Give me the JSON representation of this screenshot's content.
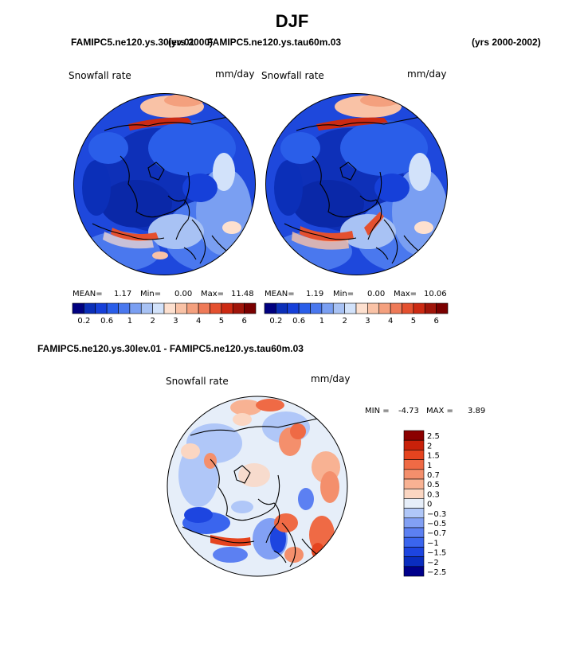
{
  "page": {
    "title": "DJF",
    "case_a": "FAMIPC5.ne120.ys.30lev.01",
    "case_b": "FAMIPC5.ne120.ys.tau60m.03",
    "case_a_years": "(yrs 2000)",
    "case_b_years": "(yrs 2000-2002)",
    "diff_title": "FAMIPC5.ne120.ys.30lev.01 - FAMIPC5.ne120.ys.tau60m.03"
  },
  "panels": {
    "left": {
      "variable": "Snowfall rate",
      "units": "mm/day",
      "mean_label": "MEAN=",
      "mean": "1.17",
      "min_label": "Min=",
      "min": "0.00",
      "max_label": "Max=",
      "max": "11.48"
    },
    "right": {
      "variable": "Snowfall rate",
      "units": "mm/day",
      "mean_label": "MEAN=",
      "mean": "1.19",
      "min_label": "Min=",
      "min": "0.00",
      "max_label": "Max=",
      "max": "10.06"
    },
    "diff": {
      "variable": "Snowfall rate",
      "units": "mm/day",
      "min_label": "MIN =",
      "min": "-4.73",
      "max_label": "MAX =",
      "max": "3.89"
    }
  },
  "colors": {
    "abs_scale": [
      "#00007f",
      "#0b2fb8",
      "#1640d9",
      "#2a5ee9",
      "#4a78ee",
      "#7a9ff2",
      "#a8c2f4",
      "#d2e2fa",
      "#fde0cf",
      "#f9c2a6",
      "#f4a07e",
      "#ee7a58",
      "#e4502f",
      "#cc2a13",
      "#a0150a",
      "#7a0000"
    ],
    "diff_scale": [
      "#00008b",
      "#0a2dbf",
      "#1d45e0",
      "#3a65ee",
      "#5c80f2",
      "#82a0f4",
      "#b0c7f8",
      "#e6eef9",
      "#fbd6c2",
      "#f8b293",
      "#f48f6c",
      "#ef6a45",
      "#e5441f",
      "#c8210a",
      "#8b0000"
    ]
  },
  "chart_data": [
    {
      "type": "heatmap",
      "title": "Snowfall rate",
      "units": "mm/day",
      "case": "FAMIPC5.ne120.ys.30lev.01",
      "projection": "polar stereographic (north pole)",
      "mean": 1.17,
      "min": 0.0,
      "max": 11.48,
      "colorbar_levels": [
        0.1,
        0.2,
        0.4,
        0.6,
        0.8,
        1,
        1.5,
        2,
        2.5,
        3,
        3.5,
        4,
        4.5,
        5,
        6
      ],
      "colorbar_tick_labels": [
        "0.2",
        "0.6",
        "1",
        "2",
        "3",
        "4",
        "5",
        "6"
      ]
    },
    {
      "type": "heatmap",
      "title": "Snowfall rate",
      "units": "mm/day",
      "case": "FAMIPC5.ne120.ys.tau60m.03",
      "projection": "polar stereographic (north pole)",
      "mean": 1.19,
      "min": 0.0,
      "max": 10.06,
      "colorbar_levels": [
        0.1,
        0.2,
        0.4,
        0.6,
        0.8,
        1,
        1.5,
        2,
        2.5,
        3,
        3.5,
        4,
        4.5,
        5,
        6
      ],
      "colorbar_tick_labels": [
        "0.2",
        "0.6",
        "1",
        "2",
        "3",
        "4",
        "5",
        "6"
      ]
    },
    {
      "type": "heatmap",
      "title": "Snowfall rate",
      "units": "mm/day",
      "case": "FAMIPC5.ne120.ys.30lev.01 - FAMIPC5.ne120.ys.tau60m.03",
      "projection": "polar stereographic (north pole)",
      "min": -4.73,
      "max": 3.89,
      "colorbar_levels": [
        -2.5,
        -2,
        -1.5,
        -1,
        -0.7,
        -0.5,
        -0.3,
        0,
        0.3,
        0.5,
        0.7,
        1,
        1.5,
        2,
        2.5
      ],
      "colorbar_tick_labels": [
        "2.5",
        "2",
        "1.5",
        "1",
        "0.7",
        "0.5",
        "0.3",
        "0",
        "−0.3",
        "−0.5",
        "−0.7",
        "−1",
        "−1.5",
        "−2",
        "−2.5"
      ]
    }
  ]
}
